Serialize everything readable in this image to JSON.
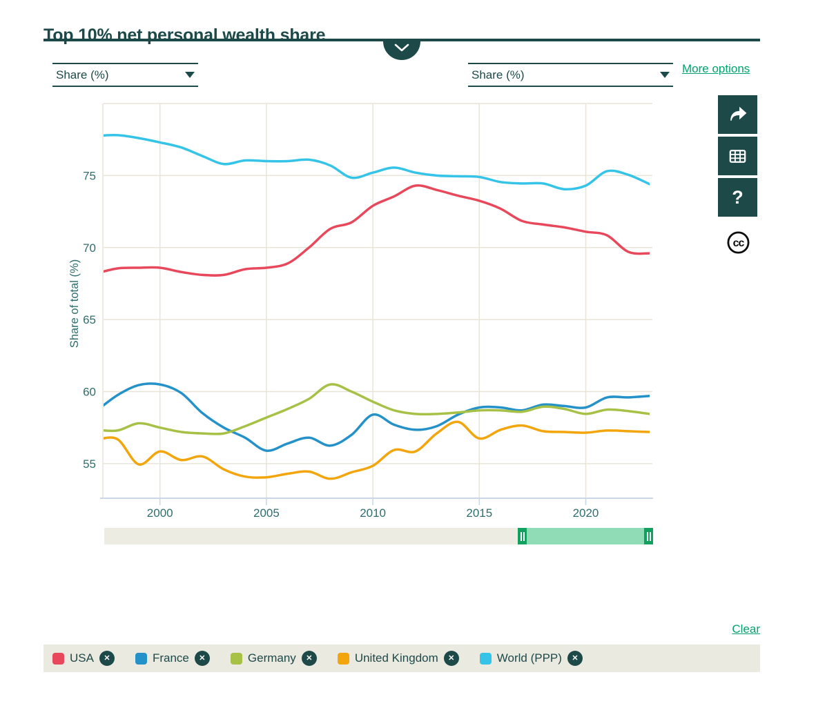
{
  "header": {
    "title": "Top 10% net personal wealth share"
  },
  "controls": {
    "metric_select_left": {
      "value": "Share (%)"
    },
    "metric_select_right": {
      "value": "Share (%)"
    },
    "more_options_label": "More options",
    "clear_label": "Clear"
  },
  "toolbar": {
    "buttons": [
      "share-export",
      "data-table",
      "help"
    ],
    "license_badge": "cc"
  },
  "time_slider": {
    "full_range": [
      1997,
      2023
    ],
    "selected_range": [
      2016.6,
      2023
    ],
    "selected_fracs": [
      0.753,
      1.0
    ]
  },
  "legend": {
    "remove_label": "✕"
  },
  "chart_data": {
    "type": "line",
    "title": "Top 10% net personal wealth share",
    "xlabel": "",
    "ylabel": "Share of total (%)",
    "x_ticks": [
      2000,
      2005,
      2010,
      2015,
      2020
    ],
    "y_ticks": [
      55,
      60,
      65,
      70,
      75
    ],
    "x_range": [
      1997.35,
      2023
    ],
    "y_range": [
      52.6,
      80
    ],
    "grid": true,
    "legend_position": "bottom",
    "years": [
      1997,
      1998,
      1999,
      2000,
      2001,
      2002,
      2003,
      2004,
      2005,
      2006,
      2007,
      2008,
      2009,
      2010,
      2011,
      2012,
      2013,
      2014,
      2015,
      2016,
      2017,
      2018,
      2019,
      2020,
      2021,
      2022,
      2023
    ],
    "series": [
      {
        "name": "USA",
        "color": "#e8485c",
        "values": [
          68.2,
          68.55,
          68.6,
          68.6,
          68.3,
          68.1,
          68.1,
          68.5,
          68.6,
          68.9,
          70.0,
          71.3,
          71.75,
          72.9,
          73.55,
          74.3,
          74.0,
          73.6,
          73.25,
          72.7,
          71.85,
          71.6,
          71.4,
          71.1,
          70.85,
          69.7,
          69.6
        ]
      },
      {
        "name": "France",
        "color": "#2492c8",
        "values": [
          58.65,
          59.75,
          60.45,
          60.5,
          59.9,
          58.5,
          57.5,
          56.8,
          55.9,
          56.4,
          56.8,
          56.25,
          57.0,
          58.4,
          57.7,
          57.35,
          57.6,
          58.4,
          58.9,
          58.9,
          58.7,
          59.1,
          59.0,
          58.9,
          59.6,
          59.6,
          59.7
        ]
      },
      {
        "name": "Germany",
        "color": "#a6c146",
        "values": [
          57.35,
          57.3,
          57.8,
          57.5,
          57.2,
          57.1,
          57.1,
          57.6,
          58.2,
          58.8,
          59.5,
          60.5,
          60.0,
          59.3,
          58.7,
          58.45,
          58.45,
          58.55,
          58.7,
          58.7,
          58.6,
          58.95,
          58.8,
          58.45,
          58.75,
          58.65,
          58.45
        ]
      },
      {
        "name": "United Kingdom",
        "color": "#f2a50c",
        "values": [
          56.65,
          56.7,
          54.95,
          55.85,
          55.25,
          55.5,
          54.6,
          54.1,
          54.05,
          54.3,
          54.45,
          53.95,
          54.4,
          54.85,
          55.95,
          55.85,
          57.1,
          57.9,
          56.75,
          57.35,
          57.65,
          57.25,
          57.2,
          57.15,
          57.3,
          57.25,
          57.2
        ]
      },
      {
        "name": "World (PPP)",
        "color": "#35c4e8",
        "values": [
          77.75,
          77.8,
          77.6,
          77.3,
          76.95,
          76.35,
          75.8,
          76.05,
          76.0,
          76.0,
          76.1,
          75.7,
          74.85,
          75.2,
          75.55,
          75.2,
          75.0,
          74.95,
          74.9,
          74.55,
          74.45,
          74.45,
          74.05,
          74.3,
          75.3,
          75.05,
          74.4
        ]
      }
    ]
  },
  "colors": {
    "accent_teal": "#1d4949",
    "tick_text": "#2f6d6d",
    "link_green": "#00a36d",
    "gridline": "#e7e4d7",
    "axis_line": "#c9d7e6",
    "legend_bg": "#ebeae1",
    "slider_track": "#edece2",
    "slider_selected": "#8fdcb7",
    "slider_handle": "#12a05e"
  }
}
